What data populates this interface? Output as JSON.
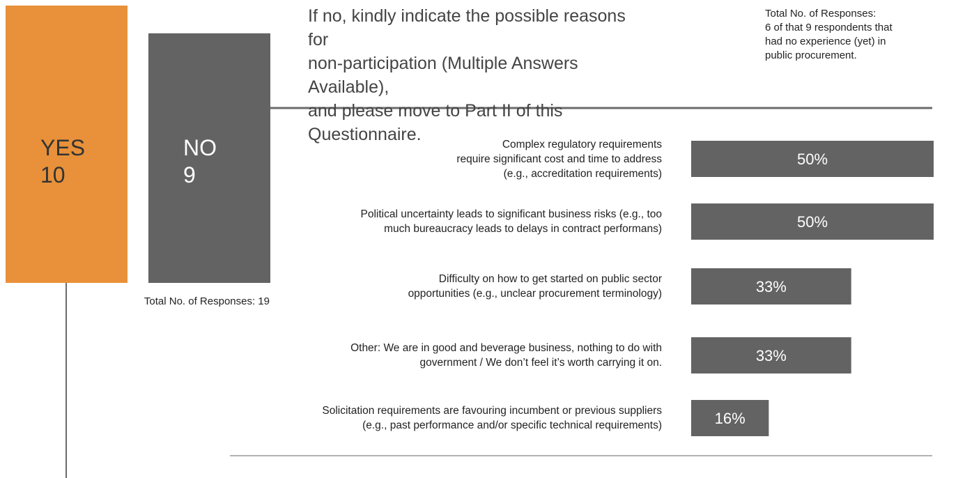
{
  "chart_data": [
    {
      "type": "bar",
      "categories": [
        "YES",
        "NO"
      ],
      "values": [
        10,
        9
      ],
      "colors": [
        "#e8913a",
        "#636363"
      ],
      "annotation": "Total No. of Responses: 19"
    },
    {
      "type": "hbar",
      "title": "If no, kindly indicate the possible reasons for\nnon-participation (Multiple Answers Available),\nand please move to Part II of this Questionnaire.",
      "note": "Total No. of Responses:\n6 of that 9 respondents that\nhad no experience (yet) in\npublic procurement.",
      "categories": [
        "Complex regulatory requirements\nrequire significant cost and time to address\n(e.g., accreditation requirements)",
        "Political uncertainty leads to significant business risks (e.g., too\nmuch bureaucracy leads to delays in contract performans)",
        "Difficulty on how to get started on public sector\nopportunities (e.g., unclear procurement terminology)",
        "Other: We are in good and beverage business, nothing to do with\ngovernment / We don’t feel it’s worth carrying it on.",
        "Solicitation requirements are favouring incumbent or previous suppliers\n(e.g., past performance and/or specific technical requirements)"
      ],
      "values": [
        50,
        50,
        33,
        33,
        16
      ],
      "value_labels": [
        "50%",
        "50%",
        "33%",
        "33%",
        "16%"
      ],
      "color": "#636363"
    }
  ]
}
